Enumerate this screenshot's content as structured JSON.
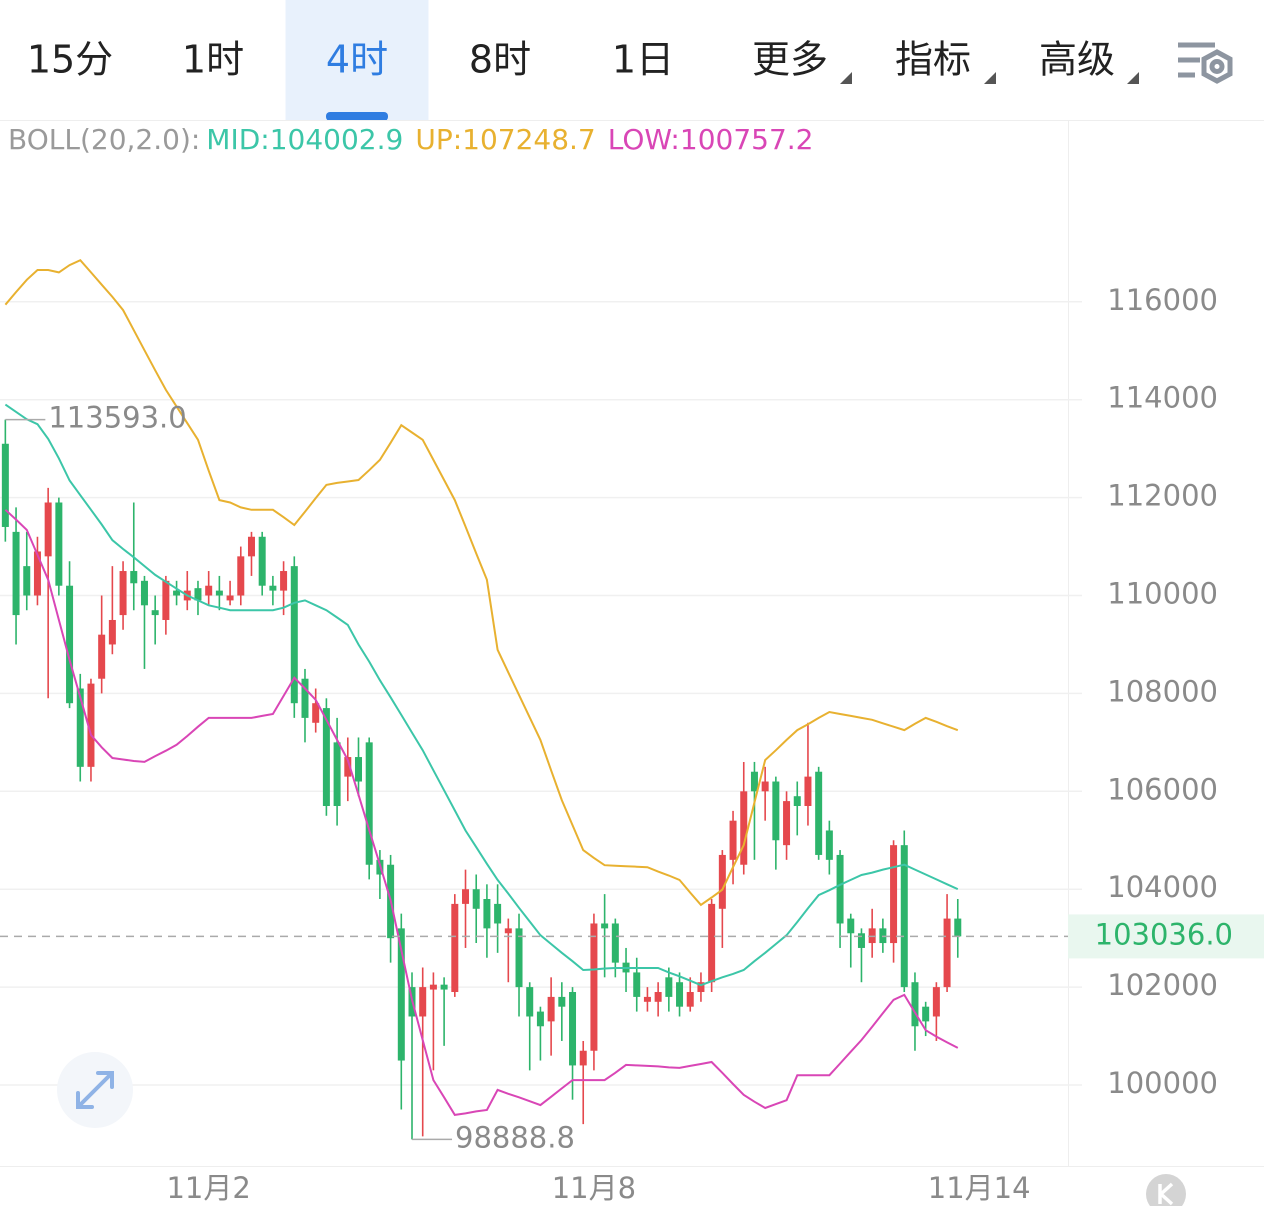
{
  "tabs": {
    "items": [
      "15分",
      "1时",
      "4时",
      "8时",
      "1日",
      "更多",
      "指标",
      "高级"
    ],
    "active": 2
  },
  "chart_data": {
    "type": "candlestick",
    "up_color": "#e5484d",
    "down_color": "#2db46b",
    "indicator": {
      "name": "BOLL(20,2.0):",
      "lines": [
        {
          "name": "MID:",
          "color": "#3cc6a8",
          "values": [
            113900,
            113750,
            113600,
            113500,
            113200,
            112800,
            112350,
            112050,
            111750,
            111450,
            111130,
            110950,
            110780,
            110600,
            110420,
            110280,
            110140,
            110000,
            109900,
            109800,
            109750,
            109700,
            109700,
            109700,
            109700,
            109700,
            109750,
            109850,
            109900,
            109800,
            109700,
            109550,
            109400,
            109000,
            108650,
            108270,
            107920,
            107560,
            107200,
            106840,
            106430,
            106020,
            105610,
            105200,
            104860,
            104520,
            104190,
            103910,
            103620,
            103340,
            103060,
            102880,
            102700,
            102530,
            102350,
            102360,
            102380,
            102390,
            102390,
            102390,
            102390,
            102390,
            102300,
            102220,
            102130,
            102040,
            102120,
            102200,
            102270,
            102350,
            102530,
            102700,
            102880,
            103060,
            103330,
            103610,
            103880,
            103980,
            104090,
            104190,
            104290,
            104340,
            104400,
            104450,
            104500,
            104400,
            104300,
            104200,
            104100,
            104002.9
          ]
        },
        {
          "name": "UP:",
          "color": "#e8b130",
          "values": [
            115940,
            116200,
            116450,
            116650,
            116650,
            116600,
            116750,
            116850,
            116600,
            116350,
            116100,
            115830,
            115420,
            115010,
            114600,
            114200,
            113860,
            113520,
            113180,
            112550,
            111950,
            111900,
            111800,
            111750,
            111750,
            111750,
            111600,
            111440,
            111710,
            111990,
            112260,
            112300,
            112330,
            112360,
            112560,
            112770,
            113120,
            113480,
            113330,
            113180,
            112770,
            112360,
            111950,
            111410,
            110860,
            110320,
            108890,
            108430,
            107970,
            107510,
            107050,
            106430,
            105820,
            105310,
            104800,
            104640,
            104490,
            104480,
            104470,
            104460,
            104450,
            104360,
            104280,
            104190,
            103930,
            103680,
            103830,
            103990,
            104450,
            104900,
            105770,
            106640,
            106840,
            107050,
            107250,
            107370,
            107500,
            107620,
            107580,
            107540,
            107500,
            107460,
            107390,
            107320,
            107250,
            107380,
            107500,
            107420,
            107330,
            107248.7
          ]
        },
        {
          "name": "LOW:",
          "color": "#d946b6",
          "values": [
            111750,
            111550,
            111340,
            110830,
            110320,
            109500,
            108680,
            107920,
            107150,
            106900,
            106680,
            106650,
            106620,
            106600,
            106720,
            106830,
            106950,
            107130,
            107320,
            107500,
            107500,
            107500,
            107500,
            107500,
            107540,
            107580,
            107950,
            108320,
            108100,
            107870,
            107460,
            107050,
            106640,
            105930,
            105210,
            104500,
            103780,
            102760,
            101740,
            100920,
            100100,
            99750,
            99390,
            99420,
            99460,
            99490,
            99900,
            99820,
            99750,
            99670,
            99590,
            99760,
            99930,
            100100,
            100100,
            100100,
            100100,
            100250,
            100410,
            100400,
            100390,
            100380,
            100360,
            100350,
            100390,
            100430,
            100470,
            100250,
            100020,
            99800,
            99660,
            99530,
            99610,
            99690,
            100200,
            100200,
            100200,
            100200,
            100440,
            100680,
            100920,
            101190,
            101470,
            101740,
            101840,
            101480,
            101120,
            100990,
            100870,
            100757.2
          ]
        }
      ]
    },
    "open": [
      113100,
      111300,
      110600,
      110000,
      110800,
      111900,
      110200,
      108100,
      106500,
      108300,
      109000,
      109600,
      110500,
      110300,
      109700,
      109500,
      110100,
      109900,
      110150,
      110000,
      110100,
      109900,
      110000,
      110800,
      111200,
      110200,
      110100,
      110600,
      108300,
      107400,
      107700,
      107000,
      106300,
      106700,
      107000,
      104600,
      104500,
      103200,
      102000,
      101400,
      101950,
      102050,
      101900,
      103700,
      104000,
      103800,
      103700,
      103100,
      103200,
      102000,
      101500,
      101300,
      101800,
      101900,
      100400,
      100700,
      103300,
      103300,
      102500,
      102300,
      101700,
      101700,
      102200,
      102100,
      101600,
      101900,
      102100,
      103600,
      104600,
      104500,
      106400,
      106000,
      106200,
      104900,
      105900,
      105700,
      106400,
      105200,
      104700,
      103400,
      103100,
      102900,
      103200,
      102900,
      104900,
      102100,
      101600,
      101400,
      102000,
      103400
    ],
    "high": [
      113593,
      111800,
      111300,
      111200,
      112200,
      112000,
      110700,
      108400,
      108300,
      110000,
      110600,
      110700,
      111900,
      110400,
      110000,
      110400,
      110300,
      110500,
      110300,
      110500,
      110400,
      110300,
      111000,
      111300,
      111300,
      110400,
      110700,
      110800,
      108500,
      108100,
      107900,
      107500,
      107100,
      107100,
      107100,
      104800,
      104700,
      103500,
      102300,
      102400,
      102300,
      102200,
      103900,
      104400,
      104300,
      104100,
      104100,
      103400,
      103500,
      102100,
      101600,
      102200,
      102100,
      102000,
      100900,
      103500,
      103900,
      103400,
      102800,
      102600,
      102000,
      102100,
      102400,
      102300,
      102200,
      102300,
      103800,
      104800,
      105600,
      106600,
      106600,
      106500,
      106300,
      106000,
      106200,
      107400,
      106500,
      105400,
      104800,
      103500,
      103200,
      103600,
      103400,
      105000,
      105200,
      102300,
      101700,
      102100,
      103900,
      103800
    ],
    "low": [
      111100,
      109000,
      109700,
      109800,
      107900,
      110000,
      107700,
      106200,
      106200,
      108000,
      108800,
      109300,
      109700,
      108500,
      109000,
      109200,
      109800,
      109700,
      109600,
      109800,
      109700,
      109800,
      109800,
      110400,
      110000,
      109800,
      109600,
      107500,
      107000,
      107200,
      105500,
      105300,
      105800,
      105900,
      104200,
      103800,
      102500,
      99500,
      98888.8,
      98950,
      100300,
      100800,
      101800,
      102800,
      102900,
      102600,
      102700,
      102100,
      101400,
      100300,
      100500,
      100600,
      100900,
      99700,
      99200,
      100300,
      102200,
      102200,
      101900,
      101500,
      101500,
      101400,
      101500,
      101400,
      101500,
      101700,
      101900,
      102800,
      104100,
      104300,
      104600,
      105400,
      104400,
      104600,
      105100,
      105300,
      104600,
      104300,
      102800,
      102400,
      102100,
      102600,
      102700,
      102500,
      101900,
      100700,
      101000,
      100900,
      101900,
      102600
    ],
    "close": [
      111400,
      109600,
      110000,
      110900,
      111900,
      110200,
      107800,
      106500,
      108200,
      109200,
      109500,
      110500,
      110250,
      109800,
      109600,
      110300,
      110000,
      110100,
      109900,
      110200,
      110000,
      110000,
      110800,
      111200,
      110200,
      110100,
      110500,
      107800,
      107500,
      107800,
      105700,
      105700,
      106700,
      106200,
      104500,
      104300,
      103000,
      100500,
      101400,
      102000,
      102050,
      101950,
      103700,
      104000,
      103600,
      103200,
      103300,
      103200,
      102000,
      101400,
      101200,
      101800,
      101600,
      100400,
      100700,
      103300,
      103200,
      102500,
      102300,
      101800,
      101800,
      101900,
      101800,
      101600,
      101900,
      102100,
      103700,
      104700,
      105400,
      106000,
      106000,
      106200,
      105000,
      105800,
      105700,
      106300,
      104700,
      104600,
      103300,
      103100,
      102800,
      103200,
      102900,
      104900,
      102000,
      101200,
      101300,
      102000,
      103400,
      103036
    ],
    "high_label": "113593.0",
    "low_label": "98888.8",
    "last_label": "103036.0",
    "ylim": [
      98366,
      119714
    ],
    "yticks": [
      100000,
      102000,
      104000,
      106000,
      108000,
      110000,
      112000,
      114000,
      116000
    ],
    "xlim": [
      -0.5,
      99.3
    ],
    "xticks": [
      {
        "value": 19,
        "label": "11月2"
      },
      {
        "value": 55,
        "label": "11月8"
      },
      {
        "value": 91,
        "label": "11月14"
      }
    ],
    "grid": true
  }
}
